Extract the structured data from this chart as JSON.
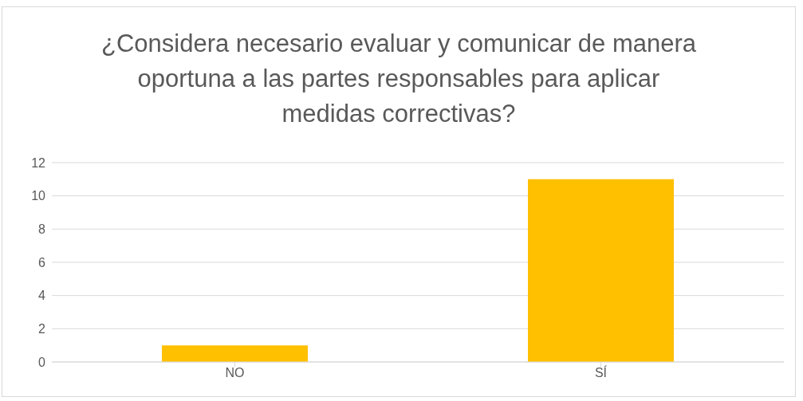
{
  "chart_data": {
    "type": "bar",
    "title": "¿Considera necesario evaluar y comunicar de manera oportuna a las partes responsables para aplicar medidas correctivas?",
    "categories": [
      "NO",
      "SÍ"
    ],
    "values": [
      1,
      11
    ],
    "color": "#ffc000",
    "ylim": [
      0,
      12
    ],
    "yticks": [
      0,
      2,
      4,
      6,
      8,
      10,
      12
    ],
    "grid": "y"
  }
}
